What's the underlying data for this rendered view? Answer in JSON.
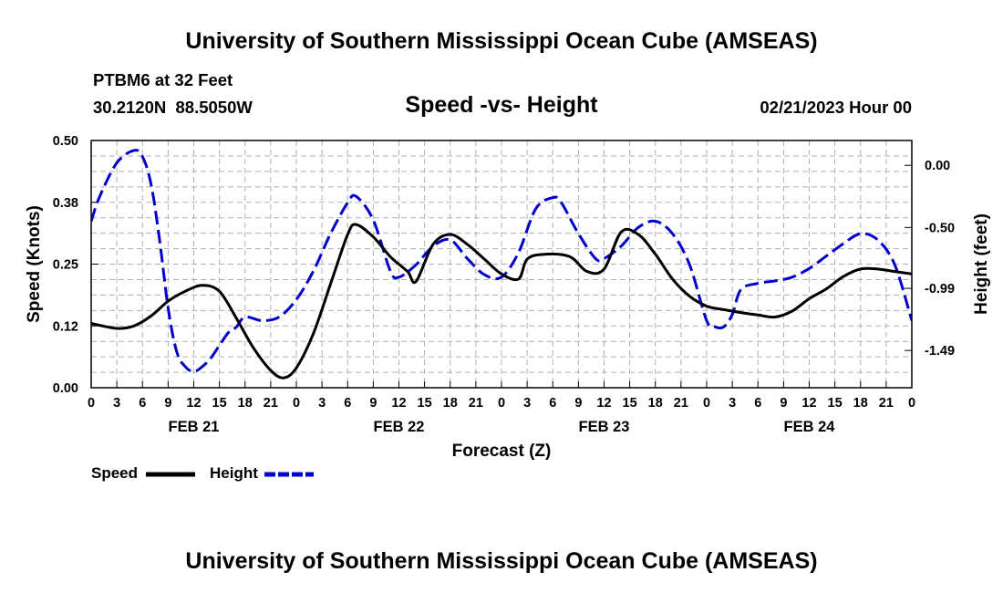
{
  "page": {
    "title": "University of Southern Mississippi Ocean Cube (AMSEAS)",
    "footer_title": "University of Southern Mississippi Ocean Cube (AMSEAS)",
    "station": "PTBM6 at 32 Feet",
    "location": "30.2120N  88.5050W",
    "datetime": "02/21/2023 Hour 00"
  },
  "chart_data": {
    "type": "line",
    "title": "Speed -vs- Height",
    "xlabel": "Forecast (Z)",
    "ylabel_left": "Speed (Knots)",
    "ylabel_right": "Height (feet)",
    "xlim": [
      0,
      96
    ],
    "ylim_left": [
      0,
      0.5
    ],
    "ylim_right": [
      -1.79,
      0.2
    ],
    "left_ticks": [
      {
        "v": 0.0,
        "label": "0.00"
      },
      {
        "v": 0.125,
        "label": "0.12"
      },
      {
        "v": 0.25,
        "label": "0.25"
      },
      {
        "v": 0.375,
        "label": "0.38"
      },
      {
        "v": 0.5,
        "label": "0.50"
      }
    ],
    "right_ticks": [
      {
        "v": 0.0,
        "label": "0.00"
      },
      {
        "v": -0.5,
        "label": "-0.50"
      },
      {
        "v": -0.99,
        "label": "-0.99"
      },
      {
        "v": -1.49,
        "label": "-1.49"
      }
    ],
    "x_tick_labels": [
      "0",
      "3",
      "6",
      "9",
      "12",
      "15",
      "18",
      "21",
      "0",
      "3",
      "6",
      "9",
      "12",
      "15",
      "18",
      "21",
      "0",
      "3",
      "6",
      "9",
      "12",
      "15",
      "18",
      "21",
      "0",
      "3",
      "6",
      "9",
      "12",
      "15",
      "18",
      "21",
      "0"
    ],
    "date_labels": [
      {
        "hour": 12,
        "label": "FEB 21"
      },
      {
        "hour": 36,
        "label": "FEB 22"
      },
      {
        "hour": 60,
        "label": "FEB 23"
      },
      {
        "hour": 84,
        "label": "FEB 24"
      }
    ],
    "series": [
      {
        "name": "Speed",
        "axis": "left",
        "color": "#000000",
        "dash": "solid",
        "x": [
          0,
          3,
          5,
          7,
          9,
          11,
          13,
          15,
          17,
          19,
          21,
          22.5,
          24,
          26,
          28,
          30,
          31,
          33,
          35,
          37,
          38,
          40,
          42,
          44,
          46,
          48,
          50,
          51,
          53,
          56,
          58,
          60,
          62,
          64,
          66,
          68,
          70,
          72,
          74,
          76,
          78,
          80,
          82,
          84,
          86,
          88,
          90,
          92,
          94,
          96
        ],
        "y": [
          0.13,
          0.12,
          0.125,
          0.145,
          0.175,
          0.195,
          0.207,
          0.195,
          0.14,
          0.08,
          0.035,
          0.02,
          0.04,
          0.11,
          0.21,
          0.31,
          0.33,
          0.305,
          0.265,
          0.235,
          0.215,
          0.29,
          0.31,
          0.29,
          0.26,
          0.23,
          0.22,
          0.26,
          0.27,
          0.265,
          0.235,
          0.24,
          0.315,
          0.31,
          0.27,
          0.22,
          0.185,
          0.165,
          0.158,
          0.152,
          0.147,
          0.143,
          0.155,
          0.18,
          0.2,
          0.225,
          0.24,
          0.24,
          0.235,
          0.23
        ]
      },
      {
        "name": "Height",
        "axis": "right",
        "color": "#0000cc",
        "dash": "dashed",
        "x": [
          0,
          1,
          3,
          5,
          6,
          7,
          8,
          9,
          10,
          11,
          12,
          13,
          14,
          15,
          16,
          17,
          18,
          20,
          22,
          24,
          26,
          28,
          30,
          31,
          33,
          35,
          36,
          38,
          40,
          42,
          44,
          46,
          48,
          50,
          52,
          54,
          55,
          57,
          59,
          60,
          62,
          64,
          66,
          68,
          70,
          72,
          73,
          74,
          75,
          76,
          78,
          80,
          82,
          84,
          86,
          88,
          90,
          92,
          94,
          96
        ],
        "y": [
          -0.45,
          -0.25,
          0.02,
          0.12,
          0.07,
          -0.15,
          -0.6,
          -1.15,
          -1.5,
          -1.62,
          -1.66,
          -1.62,
          -1.55,
          -1.45,
          -1.35,
          -1.3,
          -1.22,
          -1.25,
          -1.22,
          -1.08,
          -0.85,
          -0.55,
          -0.3,
          -0.25,
          -0.44,
          -0.85,
          -0.9,
          -0.8,
          -0.65,
          -0.6,
          -0.75,
          -0.88,
          -0.9,
          -0.7,
          -0.35,
          -0.26,
          -0.3,
          -0.55,
          -0.75,
          -0.75,
          -0.65,
          -0.5,
          -0.45,
          -0.55,
          -0.8,
          -1.25,
          -1.3,
          -1.3,
          -1.2,
          -1.0,
          -0.95,
          -0.93,
          -0.9,
          -0.83,
          -0.73,
          -0.63,
          -0.55,
          -0.6,
          -0.8,
          -1.25
        ]
      }
    ]
  }
}
